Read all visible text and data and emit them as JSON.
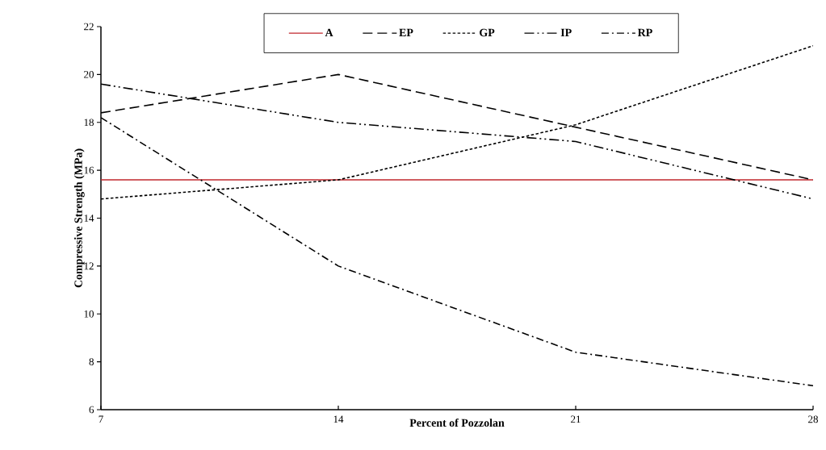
{
  "chart_data": {
    "type": "line",
    "xlabel": "Percent of Pozzolan",
    "ylabel": "Compressive Strength (MPa)",
    "x": [
      7,
      14,
      21,
      28
    ],
    "xlim": [
      7,
      28
    ],
    "xticks": [
      7,
      14,
      21,
      28
    ],
    "ylim": [
      6,
      22
    ],
    "yticks": [
      6,
      8,
      10,
      12,
      14,
      16,
      18,
      20,
      22
    ],
    "legend": "top",
    "grid": false,
    "marker": "none",
    "series": [
      {
        "name": "A",
        "color": "#c0272d",
        "line_style": "solid",
        "values": [
          15.6,
          15.6,
          15.6,
          15.6
        ]
      },
      {
        "name": "EP",
        "color": "#000000",
        "line_style": "dashed",
        "values": [
          18.4,
          20.0,
          17.8,
          15.6
        ]
      },
      {
        "name": "GP",
        "color": "#000000",
        "line_style": "dotted",
        "values": [
          14.8,
          15.6,
          17.9,
          21.2
        ]
      },
      {
        "name": "IP",
        "color": "#000000",
        "line_style": "dashdotdot",
        "values": [
          19.6,
          18.0,
          17.2,
          14.8
        ]
      },
      {
        "name": "RP",
        "color": "#000000",
        "line_style": "dashdot",
        "values": [
          18.2,
          12.0,
          8.4,
          7.0
        ]
      }
    ]
  }
}
